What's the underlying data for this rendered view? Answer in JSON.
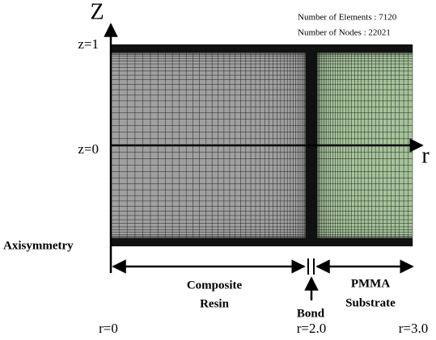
{
  "info": {
    "elements": "Number of Elements : 7120",
    "nodes": "Number of Nodes : 22021"
  },
  "axes": {
    "z_axis": "Z",
    "r_axis": "r",
    "z_top": "z=1",
    "z_mid": "z=0"
  },
  "labels": {
    "axisymmetry": "Axisymmetry",
    "composite": "Composite",
    "resin": "Resin",
    "bond": "Bond",
    "pmma": "PMMA",
    "substrate": "Substrate"
  },
  "positions": {
    "r0": "r=0",
    "r2": "r=2.0",
    "r3": "r=3.0"
  }
}
